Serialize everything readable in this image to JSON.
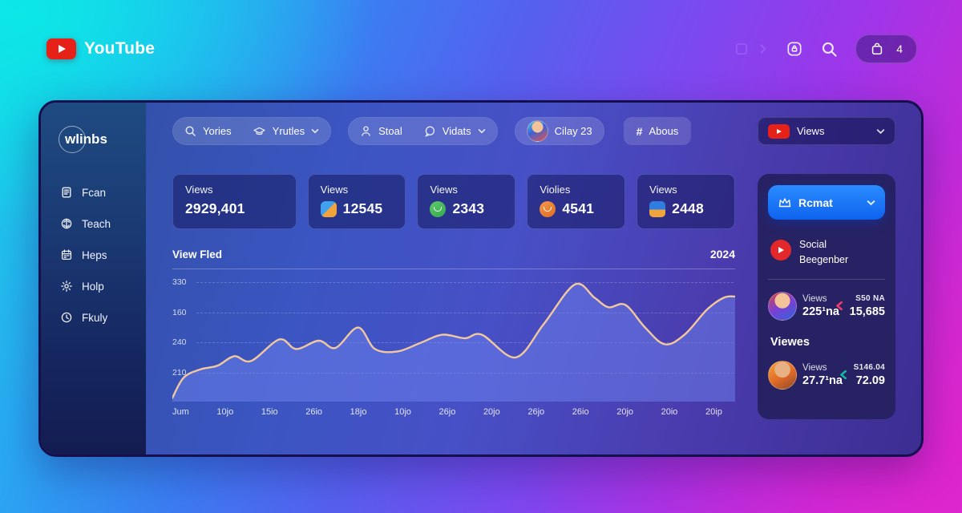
{
  "header": {
    "brand": "YouTube",
    "cart_count": "4"
  },
  "sidebar": {
    "logo": "wlinbs",
    "items": [
      {
        "label": "Fcan",
        "icon": "file-lines-icon"
      },
      {
        "label": "Teach",
        "icon": "brain-icon"
      },
      {
        "label": "Heps",
        "icon": "calendar-icon"
      },
      {
        "label": "Holp",
        "icon": "gear-icon"
      },
      {
        "label": "Fkuly",
        "icon": "history-icon"
      }
    ]
  },
  "filters": {
    "search": "Yories",
    "category": "Yrutles",
    "staff": "Stoal",
    "messages": "Vidats",
    "user": "Cilay 23",
    "hash": "#",
    "about": "Abous",
    "views": "Views"
  },
  "stats": [
    {
      "label": "Views",
      "value": "2929,401",
      "icon": "none"
    },
    {
      "label": "Views",
      "value": "12545",
      "icon": "puzzle-icon"
    },
    {
      "label": "Views",
      "value": "2343",
      "icon": "green-smiley-icon"
    },
    {
      "label": "Violies",
      "value": "4541",
      "icon": "orange-smiley-icon"
    },
    {
      "label": "Views",
      "value": "2448",
      "icon": "folder-icon"
    }
  ],
  "chart_data": {
    "type": "area",
    "title": "View Fled",
    "year": "2024",
    "y_ticks": [
      "330",
      "160",
      "240",
      "210"
    ],
    "x_ticks": [
      "Jum",
      "10jo",
      "15io",
      "26io",
      "18jo",
      "10jo",
      "26jo",
      "20jo",
      "26jo",
      "26io",
      "20jo",
      "20io",
      "20ip"
    ],
    "points": [
      [
        0,
        3
      ],
      [
        2,
        20
      ],
      [
        5,
        27
      ],
      [
        8,
        30
      ],
      [
        11,
        38
      ],
      [
        14,
        34
      ],
      [
        19,
        52
      ],
      [
        22,
        44
      ],
      [
        26,
        51
      ],
      [
        29,
        45
      ],
      [
        33,
        62
      ],
      [
        36,
        44
      ],
      [
        40,
        42
      ],
      [
        44,
        49
      ],
      [
        48,
        56
      ],
      [
        52,
        53
      ],
      [
        55,
        56
      ],
      [
        61,
        37
      ],
      [
        66,
        65
      ],
      [
        71.5,
        98
      ],
      [
        75,
        87
      ],
      [
        77.5,
        79
      ],
      [
        80.5,
        81
      ],
      [
        84,
        62
      ],
      [
        87.5,
        48
      ],
      [
        91,
        56
      ],
      [
        95,
        77
      ],
      [
        98,
        87
      ],
      [
        100,
        88
      ]
    ],
    "xlim": [
      0,
      100
    ],
    "ylim": [
      0,
      105
    ],
    "grid": "dashed-horizontal",
    "legend": "none",
    "line_color": "#f2c89e",
    "fill_color": "rgba(110,130,238,0.5)"
  },
  "panel": {
    "cta": "Rcmat",
    "social_line1": "Social",
    "social_line2": "Beegenber",
    "rows": [
      {
        "label": "Views",
        "value": "225¹na",
        "right_top": "S50 NA",
        "right_bottom": "15,685"
      },
      {
        "label": "Views",
        "value": "27.7¹na",
        "right_top": "S146.04",
        "right_bottom": "72.09"
      }
    ],
    "section": "Viewes"
  }
}
